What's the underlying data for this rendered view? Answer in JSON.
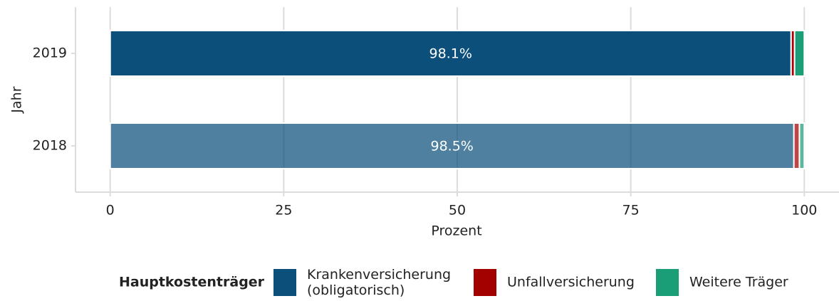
{
  "chart_data": {
    "type": "stacked_barh",
    "categories": [
      "2018",
      "2019"
    ],
    "series": [
      {
        "name": "Krankenversicherung\n(obligatorisch)",
        "color": "#0b4f7a",
        "values": [
          98.5,
          98.1
        ],
        "value_labels": [
          "98.5%",
          "98.1%"
        ]
      },
      {
        "name": "Unfallversicherung",
        "color": "#a30000",
        "values": [
          0.8,
          0.5
        ]
      },
      {
        "name": "Weitere Träger",
        "color": "#1a9e77",
        "values": [
          0.7,
          1.4
        ]
      }
    ],
    "xlabel": "Prozent",
    "ylabel": "Jahr",
    "legend_title": "Hauptkostenträger",
    "xlim": [
      -5,
      105
    ],
    "xticks": [
      0,
      25,
      50,
      75,
      100
    ],
    "grid": true,
    "legend": "bottom"
  }
}
